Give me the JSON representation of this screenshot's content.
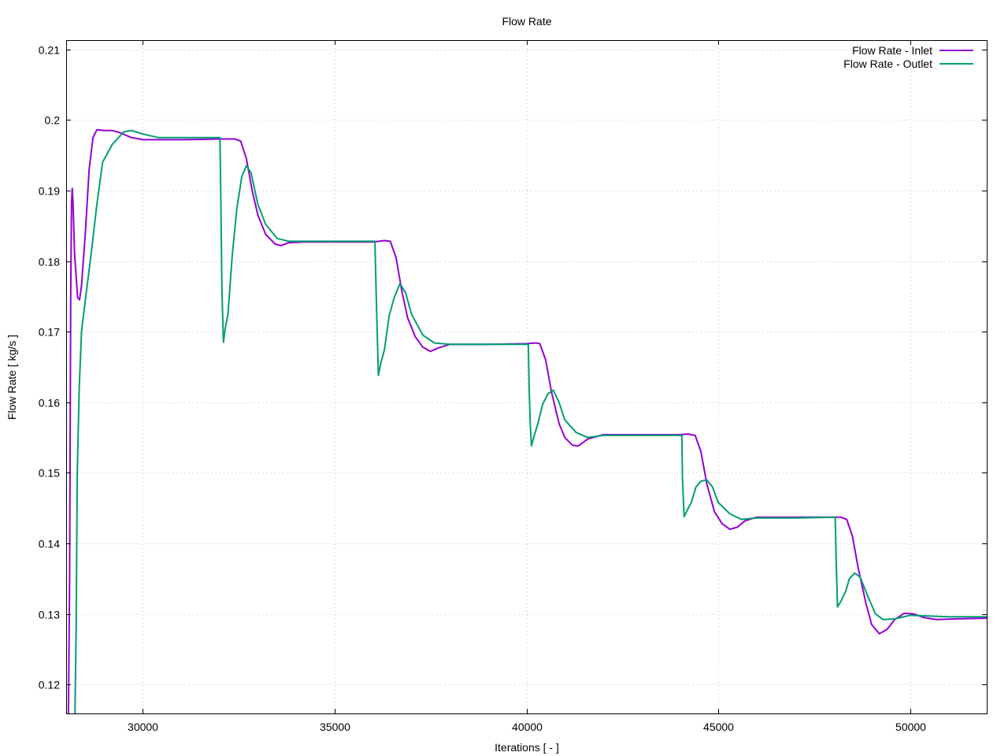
{
  "chart_data": {
    "type": "line",
    "title": "Flow Rate",
    "xlabel": "Iterations [ - ]",
    "ylabel": "Flow Rate [ kg/s ]",
    "xlim": [
      28000,
      52000
    ],
    "ylim": [
      0.1159,
      0.2113
    ],
    "xticks": [
      30000,
      35000,
      40000,
      45000,
      50000
    ],
    "xtick_labels": [
      "30000",
      "35000",
      "40000",
      "45000",
      "50000"
    ],
    "yticks": [
      0.12,
      0.13,
      0.14,
      0.15,
      0.16,
      0.17,
      0.18,
      0.19,
      0.2,
      0.21
    ],
    "ytick_labels": [
      "0.12",
      "0.13",
      "0.14",
      "0.15",
      "0.16",
      "0.17",
      "0.18",
      "0.19",
      "0.2",
      "0.21"
    ],
    "grid": true,
    "legend_position": "top-right",
    "series": [
      {
        "name": "Flow Rate - Inlet",
        "color": "#9400d3",
        "points": [
          [
            28060,
            0.1159
          ],
          [
            28090,
            0.135
          ],
          [
            28120,
            0.175
          ],
          [
            28140,
            0.188
          ],
          [
            28160,
            0.1903
          ],
          [
            28180,
            0.188
          ],
          [
            28220,
            0.181
          ],
          [
            28300,
            0.1748
          ],
          [
            28350,
            0.1745
          ],
          [
            28400,
            0.1765
          ],
          [
            28500,
            0.184
          ],
          [
            28600,
            0.193
          ],
          [
            28700,
            0.1975
          ],
          [
            28800,
            0.1986
          ],
          [
            29000,
            0.1985
          ],
          [
            29200,
            0.1985
          ],
          [
            29400,
            0.1982
          ],
          [
            29700,
            0.1975
          ],
          [
            30000,
            0.1972
          ],
          [
            31000,
            0.1972
          ],
          [
            32000,
            0.1973
          ],
          [
            32400,
            0.1973
          ],
          [
            32550,
            0.197
          ],
          [
            32700,
            0.1945
          ],
          [
            32850,
            0.19
          ],
          [
            33000,
            0.1865
          ],
          [
            33200,
            0.1838
          ],
          [
            33450,
            0.1824
          ],
          [
            33600,
            0.1822
          ],
          [
            33800,
            0.1826
          ],
          [
            34200,
            0.1827
          ],
          [
            35000,
            0.1827
          ],
          [
            36000,
            0.1827
          ],
          [
            36300,
            0.1829
          ],
          [
            36450,
            0.1828
          ],
          [
            36600,
            0.1805
          ],
          [
            36750,
            0.1758
          ],
          [
            36900,
            0.172
          ],
          [
            37100,
            0.1693
          ],
          [
            37300,
            0.1678
          ],
          [
            37500,
            0.1672
          ],
          [
            37700,
            0.1677
          ],
          [
            38000,
            0.1682
          ],
          [
            39000,
            0.1682
          ],
          [
            40000,
            0.1683
          ],
          [
            40250,
            0.1684
          ],
          [
            40350,
            0.1683
          ],
          [
            40500,
            0.166
          ],
          [
            40650,
            0.1615
          ],
          [
            40850,
            0.157
          ],
          [
            41000,
            0.155
          ],
          [
            41200,
            0.1539
          ],
          [
            41350,
            0.1538
          ],
          [
            41600,
            0.1548
          ],
          [
            42000,
            0.1554
          ],
          [
            43000,
            0.1554
          ],
          [
            44000,
            0.1554
          ],
          [
            44200,
            0.1555
          ],
          [
            44400,
            0.1553
          ],
          [
            44550,
            0.153
          ],
          [
            44700,
            0.1485
          ],
          [
            44900,
            0.1445
          ],
          [
            45100,
            0.1428
          ],
          [
            45300,
            0.142
          ],
          [
            45500,
            0.1423
          ],
          [
            45700,
            0.1432
          ],
          [
            46000,
            0.1437
          ],
          [
            46500,
            0.1437
          ],
          [
            47000,
            0.1437
          ],
          [
            48000,
            0.1437
          ],
          [
            48200,
            0.1437
          ],
          [
            48350,
            0.1434
          ],
          [
            48500,
            0.141
          ],
          [
            48650,
            0.1365
          ],
          [
            48850,
            0.1315
          ],
          [
            49000,
            0.1285
          ],
          [
            49200,
            0.1272
          ],
          [
            49400,
            0.1278
          ],
          [
            49600,
            0.1292
          ],
          [
            49850,
            0.1301
          ],
          [
            50100,
            0.13
          ],
          [
            50350,
            0.1295
          ],
          [
            50700,
            0.1292
          ],
          [
            51200,
            0.1293
          ],
          [
            52000,
            0.1294
          ]
        ]
      },
      {
        "name": "Flow Rate - Outlet",
        "color": "#009e73",
        "points": [
          [
            28230,
            0.1159
          ],
          [
            28260,
            0.128
          ],
          [
            28290,
            0.15
          ],
          [
            28340,
            0.162
          ],
          [
            28400,
            0.17
          ],
          [
            28500,
            0.1745
          ],
          [
            28650,
            0.181
          ],
          [
            28800,
            0.188
          ],
          [
            28950,
            0.194
          ],
          [
            29200,
            0.1965
          ],
          [
            29500,
            0.1983
          ],
          [
            29700,
            0.1985
          ],
          [
            30000,
            0.198
          ],
          [
            30400,
            0.1975
          ],
          [
            31000,
            0.1975
          ],
          [
            32010,
            0.1975
          ],
          [
            32030,
            0.19
          ],
          [
            32060,
            0.176
          ],
          [
            32100,
            0.1685
          ],
          [
            32150,
            0.1705
          ],
          [
            32220,
            0.1725
          ],
          [
            32330,
            0.1808
          ],
          [
            32450,
            0.1875
          ],
          [
            32580,
            0.192
          ],
          [
            32700,
            0.1935
          ],
          [
            32820,
            0.1925
          ],
          [
            33000,
            0.188
          ],
          [
            33200,
            0.1852
          ],
          [
            33500,
            0.1832
          ],
          [
            33800,
            0.1828
          ],
          [
            35000,
            0.1828
          ],
          [
            36050,
            0.1828
          ],
          [
            36070,
            0.178
          ],
          [
            36100,
            0.172
          ],
          [
            36140,
            0.1638
          ],
          [
            36200,
            0.1655
          ],
          [
            36300,
            0.1675
          ],
          [
            36420,
            0.1722
          ],
          [
            36550,
            0.1748
          ],
          [
            36700,
            0.1768
          ],
          [
            36850,
            0.1755
          ],
          [
            37000,
            0.1725
          ],
          [
            37300,
            0.1695
          ],
          [
            37600,
            0.1684
          ],
          [
            38000,
            0.1682
          ],
          [
            39000,
            0.1682
          ],
          [
            40000,
            0.1682
          ],
          [
            40050,
            0.1682
          ],
          [
            40070,
            0.162
          ],
          [
            40100,
            0.1568
          ],
          [
            40130,
            0.1538
          ],
          [
            40200,
            0.1552
          ],
          [
            40300,
            0.157
          ],
          [
            40420,
            0.1597
          ],
          [
            40560,
            0.1612
          ],
          [
            40700,
            0.1617
          ],
          [
            40850,
            0.16
          ],
          [
            41000,
            0.1575
          ],
          [
            41300,
            0.1557
          ],
          [
            41600,
            0.155
          ],
          [
            42000,
            0.1553
          ],
          [
            43000,
            0.1553
          ],
          [
            44000,
            0.1553
          ],
          [
            44050,
            0.1553
          ],
          [
            44070,
            0.149
          ],
          [
            44110,
            0.1438
          ],
          [
            44200,
            0.1448
          ],
          [
            44300,
            0.1458
          ],
          [
            44420,
            0.148
          ],
          [
            44550,
            0.1488
          ],
          [
            44700,
            0.149
          ],
          [
            44850,
            0.148
          ],
          [
            45000,
            0.1458
          ],
          [
            45300,
            0.1442
          ],
          [
            45600,
            0.1434
          ],
          [
            46000,
            0.1436
          ],
          [
            47000,
            0.1436
          ],
          [
            48050,
            0.1437
          ],
          [
            48070,
            0.1385
          ],
          [
            48110,
            0.131
          ],
          [
            48200,
            0.1318
          ],
          [
            48320,
            0.1332
          ],
          [
            48420,
            0.135
          ],
          [
            48560,
            0.1358
          ],
          [
            48700,
            0.1352
          ],
          [
            48900,
            0.1325
          ],
          [
            49100,
            0.13
          ],
          [
            49300,
            0.1292
          ],
          [
            49600,
            0.1293
          ],
          [
            50000,
            0.1298
          ],
          [
            50500,
            0.1297
          ],
          [
            51000,
            0.1296
          ],
          [
            52000,
            0.1296
          ]
        ]
      }
    ]
  }
}
